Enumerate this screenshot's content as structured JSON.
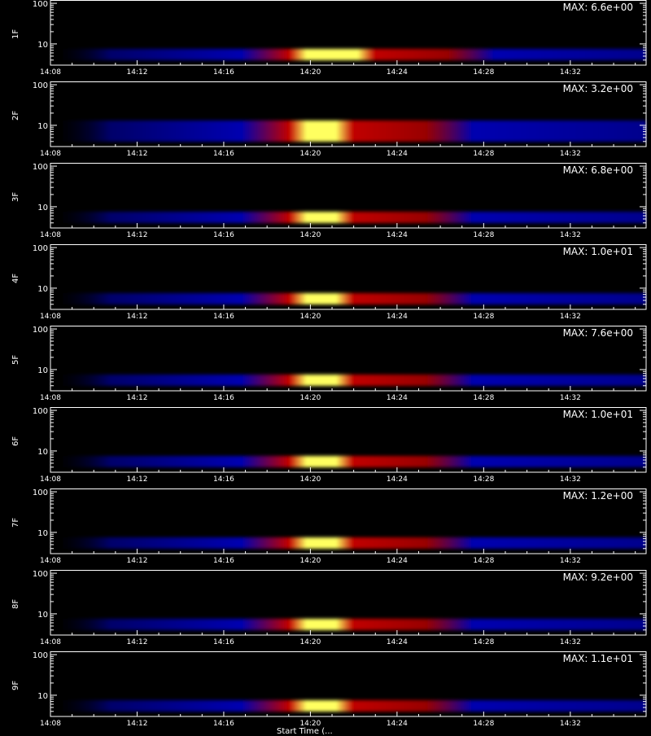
{
  "chart_data": [
    {
      "type": "heatmap",
      "ylabel": "1F",
      "max_label": "MAX: 6.6e+00",
      "x_ticks": [
        "14:08",
        "14:12",
        "14:16",
        "14:20",
        "14:24",
        "14:28",
        "14:32"
      ],
      "y_ticks": [
        "100",
        "10"
      ],
      "peak_time_start": "14:19",
      "peak_time_end": "14:23"
    },
    {
      "type": "heatmap",
      "ylabel": "2F",
      "max_label": "MAX: 3.2e+00",
      "x_ticks": [
        "14:08",
        "14:12",
        "14:16",
        "14:20",
        "14:24",
        "14:28",
        "14:32"
      ],
      "y_ticks": [
        "100",
        "10"
      ],
      "peak_time_start": "14:19",
      "peak_time_end": "14:22"
    },
    {
      "type": "heatmap",
      "ylabel": "3F",
      "max_label": "MAX: 6.8e+00",
      "x_ticks": [
        "14:08",
        "14:12",
        "14:16",
        "14:20",
        "14:24",
        "14:28",
        "14:32"
      ],
      "y_ticks": [
        "100",
        "10"
      ],
      "peak_time_start": "14:19",
      "peak_time_end": "14:22"
    },
    {
      "type": "heatmap",
      "ylabel": "4F",
      "max_label": "MAX: 1.0e+01",
      "x_ticks": [
        "14:08",
        "14:12",
        "14:16",
        "14:20",
        "14:24",
        "14:28",
        "14:32"
      ],
      "y_ticks": [
        "100",
        "10"
      ],
      "peak_time_start": "14:19",
      "peak_time_end": "14:22"
    },
    {
      "type": "heatmap",
      "ylabel": "5F",
      "max_label": "MAX: 7.6e+00",
      "x_ticks": [
        "14:08",
        "14:12",
        "14:16",
        "14:20",
        "14:24",
        "14:28",
        "14:32"
      ],
      "y_ticks": [
        "100",
        "10"
      ],
      "peak_time_start": "14:19",
      "peak_time_end": "14:22"
    },
    {
      "type": "heatmap",
      "ylabel": "6F",
      "max_label": "MAX: 1.0e+01",
      "x_ticks": [
        "14:08",
        "14:12",
        "14:16",
        "14:20",
        "14:24",
        "14:28",
        "14:32"
      ],
      "y_ticks": [
        "100",
        "10"
      ],
      "peak_time_start": "14:19",
      "peak_time_end": "14:22"
    },
    {
      "type": "heatmap",
      "ylabel": "7F",
      "max_label": "MAX: 1.2e+00",
      "x_ticks": [
        "14:08",
        "14:12",
        "14:16",
        "14:20",
        "14:24",
        "14:28",
        "14:32"
      ],
      "y_ticks": [
        "100",
        "10"
      ],
      "peak_time_start": "14:19",
      "peak_time_end": "14:22"
    },
    {
      "type": "heatmap",
      "ylabel": "8F",
      "max_label": "MAX: 9.2e+00",
      "x_ticks": [
        "14:08",
        "14:12",
        "14:16",
        "14:20",
        "14:24",
        "14:28",
        "14:32"
      ],
      "y_ticks": [
        "100",
        "10"
      ],
      "peak_time_start": "14:19",
      "peak_time_end": "14:22"
    },
    {
      "type": "heatmap",
      "ylabel": "9F",
      "max_label": "MAX: 1.1e+01",
      "x_ticks": [
        "14:08",
        "14:12",
        "14:16",
        "14:20",
        "14:24",
        "14:28",
        "14:32"
      ],
      "y_ticks": [
        "100",
        "10"
      ],
      "peak_time_start": "14:19",
      "peak_time_end": "14:22"
    }
  ],
  "colors": {
    "background": "#000000",
    "low": "#0000b0",
    "mid": "#c00000",
    "high": "#ffff60",
    "axis": "#ffffff"
  },
  "xaxis_title_partial": "Start Time (..."
}
